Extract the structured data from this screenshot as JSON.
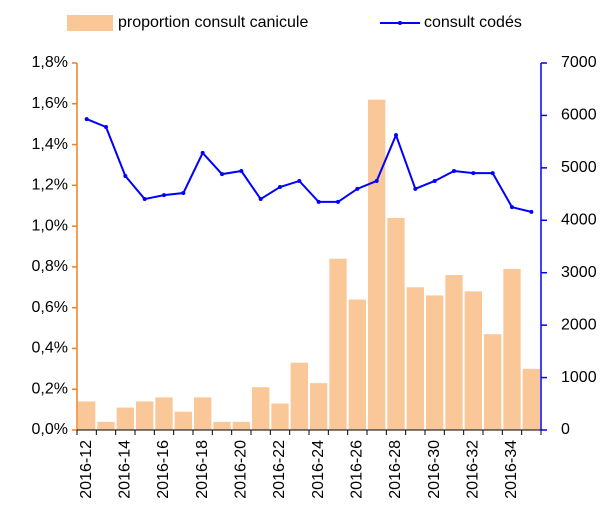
{
  "chart_data": {
    "type": "bar-line",
    "categories": [
      "2016-12",
      null,
      "2016-14",
      null,
      "2016-16",
      null,
      "2016-18",
      null,
      "2016-20",
      null,
      "2016-22",
      null,
      "2016-24",
      null,
      "2016-26",
      null,
      "2016-28",
      null,
      "2016-30",
      null,
      "2016-32",
      null,
      "2016-34",
      null
    ],
    "series": [
      {
        "name": "proportion consult canicule",
        "type": "bar",
        "color": "#fac898",
        "values": [
          0.14,
          0.04,
          0.11,
          0.14,
          0.16,
          0.09,
          0.16,
          0.04,
          0.04,
          0.21,
          0.13,
          0.33,
          0.23,
          0.84,
          0.64,
          1.62,
          1.04,
          0.7,
          0.66,
          0.76,
          0.68,
          0.47,
          0.79,
          0.3
        ]
      },
      {
        "name": "consult codés",
        "type": "line",
        "axis": "y2",
        "color": "#0000ff",
        "values": [
          5930,
          5780,
          4845,
          4405,
          4480,
          4520,
          5285,
          4880,
          4940,
          4405,
          4635,
          4750,
          4350,
          4350,
          4600,
          4750,
          5625,
          4600,
          4750,
          4940,
          4900,
          4900,
          4250,
          4160
        ]
      }
    ],
    "ylim": [
      0,
      1.8
    ],
    "yticks": [
      {
        "value": 0,
        "label": "0,0%"
      },
      {
        "value": 0.2,
        "label": "0,2%"
      },
      {
        "value": 0.4,
        "label": "0,4%"
      },
      {
        "value": 0.6,
        "label": "0,6%"
      },
      {
        "value": 0.8,
        "label": "0,8%"
      },
      {
        "value": 1.0,
        "label": "1,0%"
      },
      {
        "value": 1.2,
        "label": "1,2%"
      },
      {
        "value": 1.4,
        "label": "1,4%"
      },
      {
        "value": 1.6,
        "label": "1,6%"
      },
      {
        "value": 1.8,
        "label": "1,8%"
      }
    ],
    "y2lim": [
      0,
      7000
    ],
    "y2ticks": [
      0,
      1000,
      2000,
      3000,
      4000,
      5000,
      6000,
      7000
    ],
    "yaxis_color": "#f08020",
    "y2axis_color": "#0000ff",
    "legend": "top"
  }
}
